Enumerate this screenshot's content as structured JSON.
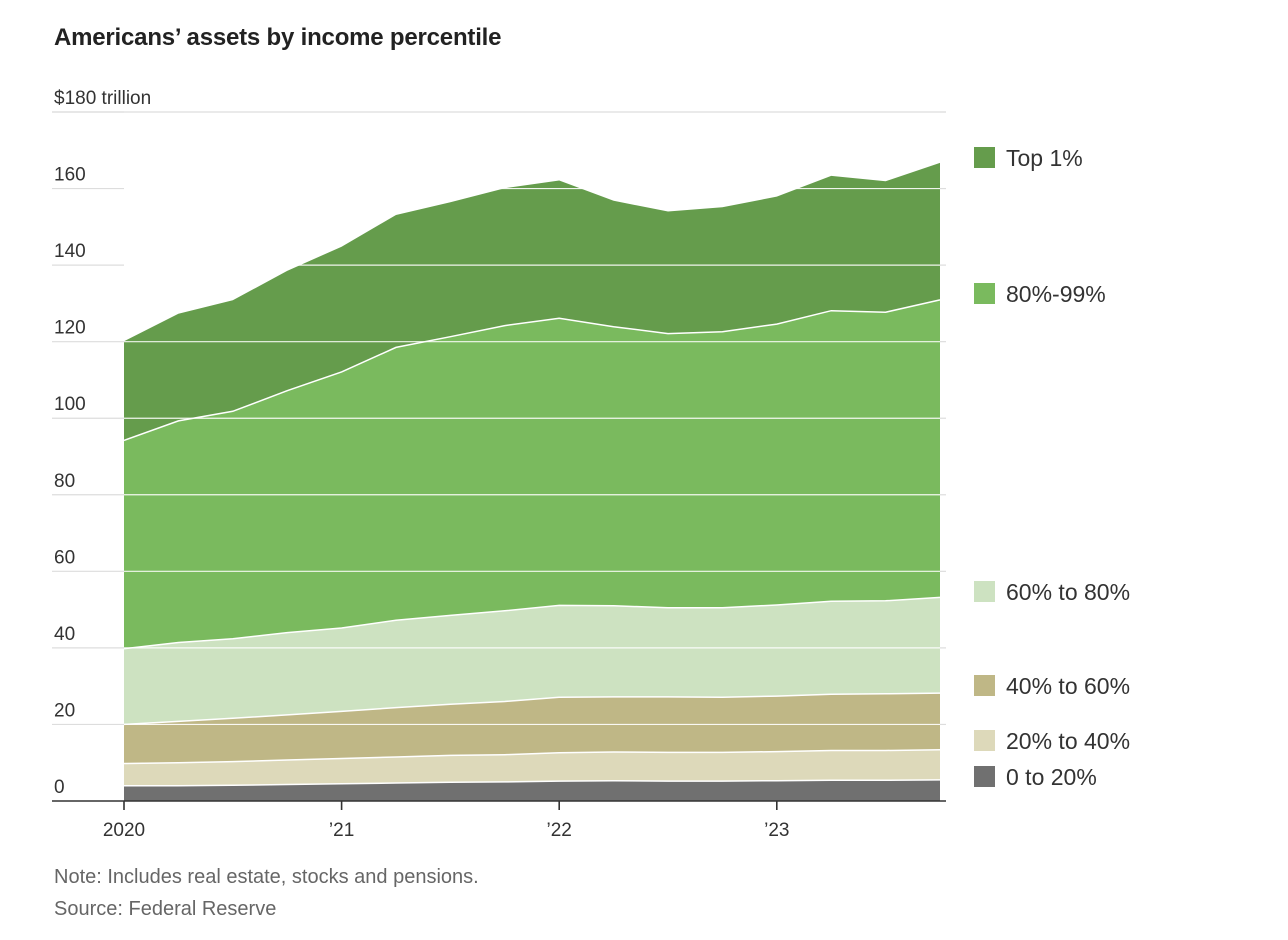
{
  "title": "Americans’ assets by income percentile",
  "note": "Note: Includes real estate, stocks and pensions.",
  "source": "Source: Federal Reserve",
  "colors": {
    "top1": "#659c4c",
    "p80_99": "#7aba5e",
    "p60_80": "#cde2c1",
    "p40_60": "#bfb786",
    "p20_40": "#ddd9ba",
    "p0_20": "#707070",
    "grid": "#dddddd",
    "axis": "#333333"
  },
  "chart_data": {
    "type": "area",
    "stacked": true,
    "x": [
      "2020 Q1",
      "2020 Q2",
      "2020 Q3",
      "2020 Q4",
      "2021 Q1",
      "2021 Q2",
      "2021 Q3",
      "2021 Q4",
      "2022 Q1",
      "2022 Q2",
      "2022 Q3",
      "2022 Q4",
      "2023 Q1",
      "2023 Q2",
      "2023 Q3",
      "2023 Q4"
    ],
    "ylim": [
      0,
      180
    ],
    "yticks": [
      0,
      20,
      40,
      60,
      80,
      100,
      120,
      140,
      160,
      180
    ],
    "ytick_labels": [
      "0",
      "20",
      "40",
      "60",
      "80",
      "100",
      "120",
      "140",
      "160",
      "$180 trillion"
    ],
    "xticks": [
      {
        "index": 0,
        "label": "2020"
      },
      {
        "index": 4,
        "label": "’21"
      },
      {
        "index": 8,
        "label": "’22"
      },
      {
        "index": 12,
        "label": "’23"
      }
    ],
    "grid": true,
    "legend_position": "right",
    "series": [
      {
        "name": "0 to 20%",
        "color_key": "p0_20",
        "values": [
          4.0,
          4.0,
          4.1,
          4.3,
          4.5,
          4.7,
          4.9,
          5.0,
          5.2,
          5.3,
          5.2,
          5.2,
          5.3,
          5.4,
          5.4,
          5.5
        ]
      },
      {
        "name": "20% to 40%",
        "color_key": "p20_40",
        "values": [
          5.8,
          6.0,
          6.2,
          6.4,
          6.6,
          6.8,
          7.0,
          7.1,
          7.4,
          7.5,
          7.5,
          7.5,
          7.6,
          7.8,
          7.8,
          7.9
        ]
      },
      {
        "name": "40% to 60%",
        "color_key": "p40_60",
        "values": [
          10.2,
          10.8,
          11.3,
          11.8,
          12.3,
          12.9,
          13.4,
          13.9,
          14.5,
          14.4,
          14.5,
          14.4,
          14.5,
          14.7,
          14.8,
          14.8
        ]
      },
      {
        "name": "60% to 80%",
        "color_key": "p60_80",
        "values": [
          19.8,
          20.6,
          20.8,
          21.5,
          21.8,
          22.8,
          23.2,
          23.7,
          24.0,
          23.8,
          23.3,
          23.4,
          23.8,
          24.3,
          24.3,
          25.0
        ]
      },
      {
        "name": "80%-99%",
        "color_key": "p80_99",
        "values": [
          54.4,
          57.9,
          59.4,
          63.2,
          66.9,
          71.3,
          72.8,
          74.5,
          75.0,
          72.9,
          71.6,
          72.1,
          73.4,
          75.9,
          75.4,
          77.7
        ]
      },
      {
        "name": "Top 1%",
        "color_key": "top1",
        "values": [
          25.9,
          28.0,
          29.0,
          31.3,
          32.7,
          34.6,
          35.1,
          35.9,
          36.0,
          32.9,
          31.9,
          32.5,
          33.3,
          35.2,
          34.2,
          35.8
        ]
      }
    ]
  }
}
